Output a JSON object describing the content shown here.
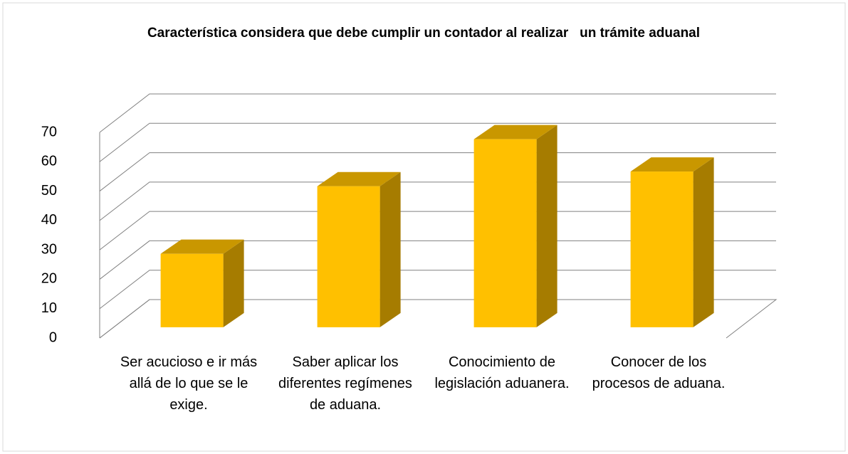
{
  "chart_data": {
    "type": "bar3d",
    "title": "Característica considera que debe cumplir un contador al realizar   un trámite aduanal",
    "categories": [
      "Ser acucioso e ir más allá de lo que se le exige.",
      "Saber aplicar los diferentes regímenes de aduana.",
      "Conocimiento de legislación aduanera.",
      "Conocer de los procesos de aduana."
    ],
    "values": [
      25,
      48,
      64,
      53
    ],
    "color": "#ffc000",
    "ylim": [
      0,
      70
    ],
    "yticks": [
      0,
      10,
      20,
      30,
      40,
      50,
      60,
      70
    ],
    "grid": true
  }
}
